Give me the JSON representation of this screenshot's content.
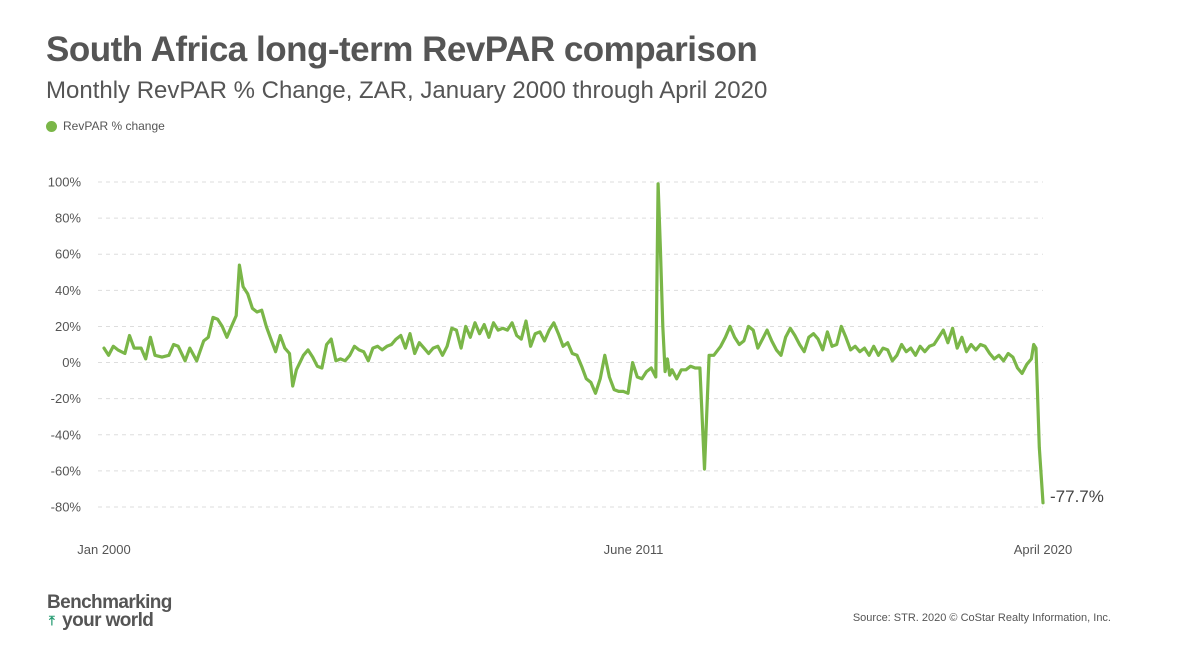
{
  "title": "South Africa long-term RevPAR comparison",
  "subtitle": "Monthly RevPAR % Change, ZAR, January 2000 through April 2020",
  "source": "Source: STR. 2020 © CoStar Realty Information, Inc.",
  "brand": {
    "line1": "Benchmarking",
    "line2": "your world"
  },
  "colors": {
    "series": "#7ab648",
    "grid": "#dddddd",
    "text": "#555555",
    "brand_arrow": "#2a9d74"
  },
  "chart_data": {
    "type": "line",
    "title": "South Africa long-term RevPAR comparison",
    "subtitle": "Monthly RevPAR % Change, ZAR, January 2000 through April 2020",
    "legend": {
      "position": "top-left",
      "entries": [
        "RevPAR % change"
      ]
    },
    "grid": "horizontal-dashed",
    "x_start": "Jan 2000",
    "x_end": "April 2020",
    "x_ticks": [
      {
        "label": "Jan 2000",
        "year": 2000.0
      },
      {
        "label": "June 2011",
        "year": 2011.42
      },
      {
        "label": "April 2020",
        "year": 2020.25
      }
    ],
    "y_ticks": [
      100,
      80,
      60,
      40,
      20,
      0,
      -20,
      -40,
      -60,
      -80
    ],
    "y_tick_labels": [
      "100%",
      "80%",
      "60%",
      "40%",
      "20%",
      "0%",
      "-20%",
      "-40%",
      "-60%",
      "-80%"
    ],
    "ylim": [
      -80,
      100
    ],
    "end_label": "-77.7%",
    "series": [
      {
        "name": "RevPAR % change",
        "points": [
          [
            2000.0,
            8
          ],
          [
            2000.1,
            4
          ],
          [
            2000.2,
            9
          ],
          [
            2000.3,
            7
          ],
          [
            2000.45,
            5
          ],
          [
            2000.55,
            15
          ],
          [
            2000.65,
            8
          ],
          [
            2000.8,
            8
          ],
          [
            2000.9,
            2
          ],
          [
            2001.0,
            14
          ],
          [
            2001.1,
            4
          ],
          [
            2001.25,
            3
          ],
          [
            2001.4,
            4
          ],
          [
            2001.5,
            10
          ],
          [
            2001.6,
            9
          ],
          [
            2001.75,
            1
          ],
          [
            2001.85,
            8
          ],
          [
            2002.0,
            1
          ],
          [
            2002.15,
            12
          ],
          [
            2002.25,
            14
          ],
          [
            2002.35,
            25
          ],
          [
            2002.45,
            24
          ],
          [
            2002.55,
            20
          ],
          [
            2002.65,
            14
          ],
          [
            2002.75,
            20
          ],
          [
            2002.85,
            26
          ],
          [
            2002.92,
            54
          ],
          [
            2003.0,
            42
          ],
          [
            2003.1,
            38
          ],
          [
            2003.2,
            30
          ],
          [
            2003.3,
            28
          ],
          [
            2003.4,
            29
          ],
          [
            2003.5,
            20
          ],
          [
            2003.6,
            13
          ],
          [
            2003.7,
            6
          ],
          [
            2003.8,
            15
          ],
          [
            2003.9,
            8
          ],
          [
            2004.0,
            5
          ],
          [
            2004.07,
            -13
          ],
          [
            2004.15,
            -4
          ],
          [
            2004.3,
            4
          ],
          [
            2004.4,
            7
          ],
          [
            2004.5,
            3
          ],
          [
            2004.6,
            -2
          ],
          [
            2004.7,
            -3
          ],
          [
            2004.8,
            10
          ],
          [
            2004.9,
            13
          ],
          [
            2005.0,
            1
          ],
          [
            2005.1,
            2
          ],
          [
            2005.2,
            1
          ],
          [
            2005.3,
            4
          ],
          [
            2005.4,
            9
          ],
          [
            2005.5,
            7
          ],
          [
            2005.6,
            6
          ],
          [
            2005.7,
            1
          ],
          [
            2005.8,
            8
          ],
          [
            2005.9,
            9
          ],
          [
            2006.0,
            7
          ],
          [
            2006.1,
            9
          ],
          [
            2006.2,
            10
          ],
          [
            2006.3,
            13
          ],
          [
            2006.4,
            15
          ],
          [
            2006.5,
            8
          ],
          [
            2006.6,
            16
          ],
          [
            2006.7,
            5
          ],
          [
            2006.8,
            11
          ],
          [
            2006.9,
            8
          ],
          [
            2007.0,
            5
          ],
          [
            2007.1,
            8
          ],
          [
            2007.2,
            9
          ],
          [
            2007.3,
            4
          ],
          [
            2007.4,
            9
          ],
          [
            2007.5,
            19
          ],
          [
            2007.6,
            18
          ],
          [
            2007.7,
            8
          ],
          [
            2007.8,
            20
          ],
          [
            2007.9,
            14
          ],
          [
            2008.0,
            22
          ],
          [
            2008.1,
            16
          ],
          [
            2008.2,
            21
          ],
          [
            2008.3,
            14
          ],
          [
            2008.4,
            22
          ],
          [
            2008.5,
            18
          ],
          [
            2008.6,
            19
          ],
          [
            2008.7,
            18
          ],
          [
            2008.8,
            22
          ],
          [
            2008.9,
            15
          ],
          [
            2009.0,
            13
          ],
          [
            2009.1,
            23
          ],
          [
            2009.2,
            9
          ],
          [
            2009.3,
            16
          ],
          [
            2009.4,
            17
          ],
          [
            2009.5,
            12
          ],
          [
            2009.6,
            18
          ],
          [
            2009.7,
            22
          ],
          [
            2009.8,
            16
          ],
          [
            2009.9,
            9
          ],
          [
            2010.0,
            11
          ],
          [
            2010.1,
            5
          ],
          [
            2010.2,
            4
          ],
          [
            2010.3,
            -2
          ],
          [
            2010.4,
            -9
          ],
          [
            2010.5,
            -11
          ],
          [
            2010.6,
            -17
          ],
          [
            2010.7,
            -9
          ],
          [
            2010.8,
            4
          ],
          [
            2010.9,
            -8
          ],
          [
            2011.0,
            -15
          ],
          [
            2011.1,
            -16
          ],
          [
            2011.2,
            -16
          ],
          [
            2011.3,
            -17
          ],
          [
            2011.4,
            0
          ],
          [
            2011.5,
            -8
          ],
          [
            2011.6,
            -9
          ],
          [
            2011.7,
            -5
          ],
          [
            2011.8,
            -3
          ],
          [
            2011.9,
            -8
          ],
          [
            2011.95,
            99
          ],
          [
            2012.0,
            63
          ],
          [
            2012.05,
            20
          ],
          [
            2012.1,
            -5
          ],
          [
            2012.15,
            2
          ],
          [
            2012.2,
            -7
          ],
          [
            2012.25,
            -4
          ],
          [
            2012.35,
            -9
          ],
          [
            2012.45,
            -4
          ],
          [
            2012.55,
            -4
          ],
          [
            2012.65,
            -2
          ],
          [
            2012.75,
            -3
          ],
          [
            2012.85,
            -3
          ],
          [
            2012.95,
            -59
          ],
          [
            2013.05,
            4
          ],
          [
            2013.15,
            4
          ],
          [
            2013.3,
            9
          ],
          [
            2013.4,
            14
          ],
          [
            2013.5,
            20
          ],
          [
            2013.6,
            14
          ],
          [
            2013.7,
            10
          ],
          [
            2013.8,
            12
          ],
          [
            2013.9,
            20
          ],
          [
            2014.0,
            18
          ],
          [
            2014.1,
            8
          ],
          [
            2014.2,
            13
          ],
          [
            2014.3,
            18
          ],
          [
            2014.4,
            12
          ],
          [
            2014.5,
            7
          ],
          [
            2014.6,
            4
          ],
          [
            2014.7,
            14
          ],
          [
            2014.8,
            19
          ],
          [
            2014.9,
            15
          ],
          [
            2015.0,
            10
          ],
          [
            2015.1,
            6
          ],
          [
            2015.2,
            14
          ],
          [
            2015.3,
            16
          ],
          [
            2015.4,
            13
          ],
          [
            2015.5,
            7
          ],
          [
            2015.6,
            17
          ],
          [
            2015.7,
            9
          ],
          [
            2015.8,
            10
          ],
          [
            2015.9,
            20
          ],
          [
            2016.0,
            14
          ],
          [
            2016.1,
            7
          ],
          [
            2016.2,
            9
          ],
          [
            2016.3,
            6
          ],
          [
            2016.4,
            8
          ],
          [
            2016.5,
            4
          ],
          [
            2016.6,
            9
          ],
          [
            2016.7,
            4
          ],
          [
            2016.8,
            8
          ],
          [
            2016.9,
            7
          ],
          [
            2017.0,
            1
          ],
          [
            2017.1,
            4
          ],
          [
            2017.2,
            10
          ],
          [
            2017.3,
            6
          ],
          [
            2017.4,
            8
          ],
          [
            2017.5,
            4
          ],
          [
            2017.6,
            9
          ],
          [
            2017.7,
            6
          ],
          [
            2017.8,
            9
          ],
          [
            2017.9,
            10
          ],
          [
            2018.0,
            14
          ],
          [
            2018.1,
            18
          ],
          [
            2018.2,
            11
          ],
          [
            2018.3,
            19
          ],
          [
            2018.4,
            8
          ],
          [
            2018.5,
            14
          ],
          [
            2018.6,
            6
          ],
          [
            2018.7,
            10
          ],
          [
            2018.8,
            7
          ],
          [
            2018.9,
            10
          ],
          [
            2019.0,
            9
          ],
          [
            2019.1,
            5
          ],
          [
            2019.2,
            2
          ],
          [
            2019.3,
            4
          ],
          [
            2019.4,
            1
          ],
          [
            2019.5,
            5
          ],
          [
            2019.6,
            3
          ],
          [
            2019.7,
            -3
          ],
          [
            2019.8,
            -6
          ],
          [
            2019.9,
            -1
          ],
          [
            2020.0,
            2
          ],
          [
            2020.05,
            10
          ],
          [
            2020.1,
            8
          ],
          [
            2020.17,
            -47
          ],
          [
            2020.25,
            -77.7
          ]
        ]
      }
    ]
  }
}
